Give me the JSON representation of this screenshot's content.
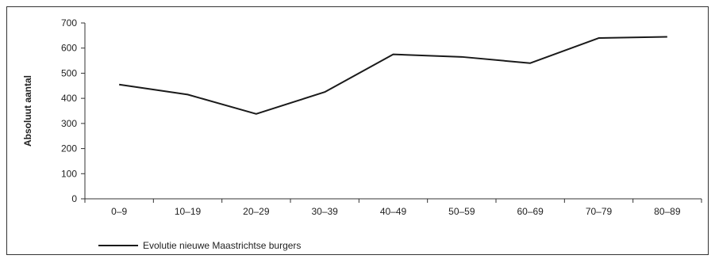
{
  "chart_data": {
    "type": "line",
    "categories": [
      "0–9",
      "10–19",
      "20–29",
      "30–39",
      "40–49",
      "50–59",
      "60–69",
      "70–79",
      "80–89"
    ],
    "series": [
      {
        "name": "Evolutie nieuwe Maastrichtse burgers",
        "values": [
          455,
          415,
          338,
          425,
          575,
          565,
          540,
          640,
          645
        ]
      }
    ],
    "ylabel": "Absoluut aantal",
    "ylim": [
      0,
      700
    ],
    "yticks": [
      0,
      100,
      200,
      300,
      400,
      500,
      600,
      700
    ],
    "grid": false,
    "legend": "bottom-left",
    "line_color": "#1a1a1a"
  }
}
